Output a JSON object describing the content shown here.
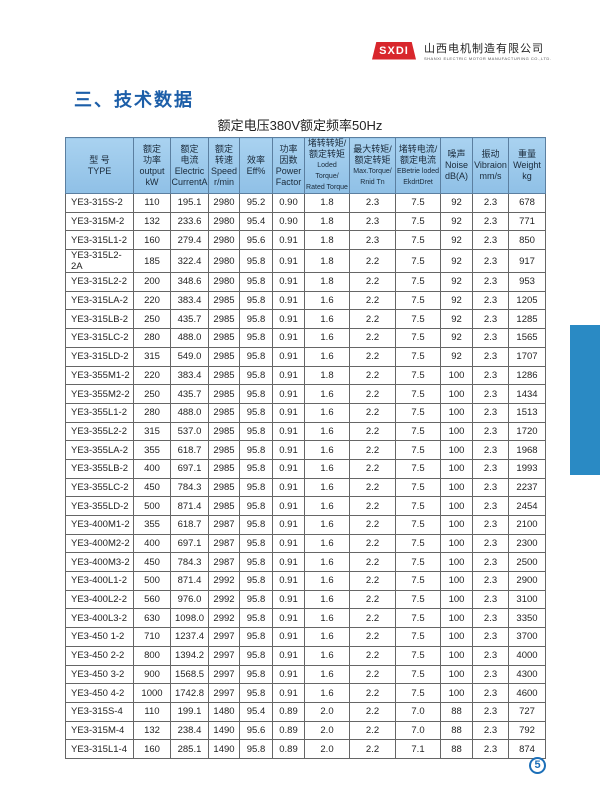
{
  "brand": {
    "logo_text": "SXDI",
    "company_cn": "山西电机制造有限公司",
    "company_en": "SHANXI ELECTRIC MOTOR MANUFACTURING CO.,LTD."
  },
  "section_title": "三、技术数据",
  "subtitle": "额定电压380V额定频率50Hz",
  "headers": [
    [
      "型 号",
      "TYPE"
    ],
    [
      "额定",
      "功率",
      "output",
      "kW"
    ],
    [
      "额定",
      "电流",
      "Electric",
      "CurrentA"
    ],
    [
      "额定",
      "转速",
      "Speed",
      "r/min"
    ],
    [
      "效率",
      "Eff%"
    ],
    [
      "功率",
      "因数",
      "Power",
      "Factor"
    ],
    [
      "堵转转矩/",
      "额定转矩",
      "Loded Torque/",
      "Rated Torque"
    ],
    [
      "最大转矩/",
      "额定转矩",
      "Max.Torque/",
      "Rnid Tn"
    ],
    [
      "堵转电流/",
      "额定电流",
      "EBetrie loded",
      "EkdrtDret"
    ],
    [
      "噪声",
      "Noise",
      "dB(A)"
    ],
    [
      "振动",
      "Vibraion",
      "mm/s"
    ],
    [
      "重量",
      "Weight",
      "kg"
    ]
  ],
  "rows": [
    [
      "YE3-315S-2",
      "110",
      "195.1",
      "2980",
      "95.2",
      "0.90",
      "1.8",
      "2.3",
      "7.5",
      "92",
      "2.3",
      "678"
    ],
    [
      "YE3-315M-2",
      "132",
      "233.6",
      "2980",
      "95.4",
      "0.90",
      "1.8",
      "2.3",
      "7.5",
      "92",
      "2.3",
      "771"
    ],
    [
      "YE3-315L1-2",
      "160",
      "279.4",
      "2980",
      "95.6",
      "0.91",
      "1.8",
      "2.3",
      "7.5",
      "92",
      "2.3",
      "850"
    ],
    [
      "YE3-315L2-2A",
      "185",
      "322.4",
      "2980",
      "95.8",
      "0.91",
      "1.8",
      "2.2",
      "7.5",
      "92",
      "2.3",
      "917"
    ],
    [
      "YE3-315L2-2",
      "200",
      "348.6",
      "2980",
      "95.8",
      "0.91",
      "1.8",
      "2.2",
      "7.5",
      "92",
      "2.3",
      "953"
    ],
    [
      "YE3-315LA-2",
      "220",
      "383.4",
      "2985",
      "95.8",
      "0.91",
      "1.6",
      "2.2",
      "7.5",
      "92",
      "2.3",
      "1205"
    ],
    [
      "YE3-315LB-2",
      "250",
      "435.7",
      "2985",
      "95.8",
      "0.91",
      "1.6",
      "2.2",
      "7.5",
      "92",
      "2.3",
      "1285"
    ],
    [
      "YE3-315LC-2",
      "280",
      "488.0",
      "2985",
      "95.8",
      "0.91",
      "1.6",
      "2.2",
      "7.5",
      "92",
      "2.3",
      "1565"
    ],
    [
      "YE3-315LD-2",
      "315",
      "549.0",
      "2985",
      "95.8",
      "0.91",
      "1.6",
      "2.2",
      "7.5",
      "92",
      "2.3",
      "1707"
    ],
    [
      "YE3-355M1-2",
      "220",
      "383.4",
      "2985",
      "95.8",
      "0.91",
      "1.8",
      "2.2",
      "7.5",
      "100",
      "2.3",
      "1286"
    ],
    [
      "YE3-355M2-2",
      "250",
      "435.7",
      "2985",
      "95.8",
      "0.91",
      "1.6",
      "2.2",
      "7.5",
      "100",
      "2.3",
      "1434"
    ],
    [
      "YE3-355L1-2",
      "280",
      "488.0",
      "2985",
      "95.8",
      "0.91",
      "1.6",
      "2.2",
      "7.5",
      "100",
      "2.3",
      "1513"
    ],
    [
      "YE3-355L2-2",
      "315",
      "537.0",
      "2985",
      "95.8",
      "0.91",
      "1.6",
      "2.2",
      "7.5",
      "100",
      "2.3",
      "1720"
    ],
    [
      "YE3-355LA-2",
      "355",
      "618.7",
      "2985",
      "95.8",
      "0.91",
      "1.6",
      "2.2",
      "7.5",
      "100",
      "2.3",
      "1968"
    ],
    [
      "YE3-355LB-2",
      "400",
      "697.1",
      "2985",
      "95.8",
      "0.91",
      "1.6",
      "2.2",
      "7.5",
      "100",
      "2.3",
      "1993"
    ],
    [
      "YE3-355LC-2",
      "450",
      "784.3",
      "2985",
      "95.8",
      "0.91",
      "1.6",
      "2.2",
      "7.5",
      "100",
      "2.3",
      "2237"
    ],
    [
      "YE3-355LD-2",
      "500",
      "871.4",
      "2985",
      "95.8",
      "0.91",
      "1.6",
      "2.2",
      "7.5",
      "100",
      "2.3",
      "2454"
    ],
    [
      "YE3-400M1-2",
      "355",
      "618.7",
      "2987",
      "95.8",
      "0.91",
      "1.6",
      "2.2",
      "7.5",
      "100",
      "2.3",
      "2100"
    ],
    [
      "YE3-400M2-2",
      "400",
      "697.1",
      "2987",
      "95.8",
      "0.91",
      "1.6",
      "2.2",
      "7.5",
      "100",
      "2.3",
      "2300"
    ],
    [
      "YE3-400M3-2",
      "450",
      "784.3",
      "2987",
      "95.8",
      "0.91",
      "1.6",
      "2.2",
      "7.5",
      "100",
      "2.3",
      "2500"
    ],
    [
      "YE3-400L1-2",
      "500",
      "871.4",
      "2992",
      "95.8",
      "0.91",
      "1.6",
      "2.2",
      "7.5",
      "100",
      "2.3",
      "2900"
    ],
    [
      "YE3-400L2-2",
      "560",
      "976.0",
      "2992",
      "95.8",
      "0.91",
      "1.6",
      "2.2",
      "7.5",
      "100",
      "2.3",
      "3100"
    ],
    [
      "YE3-400L3-2",
      "630",
      "1098.0",
      "2992",
      "95.8",
      "0.91",
      "1.6",
      "2.2",
      "7.5",
      "100",
      "2.3",
      "3350"
    ],
    [
      "YE3-450 1-2",
      "710",
      "1237.4",
      "2997",
      "95.8",
      "0.91",
      "1.6",
      "2.2",
      "7.5",
      "100",
      "2.3",
      "3700"
    ],
    [
      "YE3-450 2-2",
      "800",
      "1394.2",
      "2997",
      "95.8",
      "0.91",
      "1.6",
      "2.2",
      "7.5",
      "100",
      "2.3",
      "4000"
    ],
    [
      "YE3-450 3-2",
      "900",
      "1568.5",
      "2997",
      "95.8",
      "0.91",
      "1.6",
      "2.2",
      "7.5",
      "100",
      "2.3",
      "4300"
    ],
    [
      "YE3-450 4-2",
      "1000",
      "1742.8",
      "2997",
      "95.8",
      "0.91",
      "1.6",
      "2.2",
      "7.5",
      "100",
      "2.3",
      "4600"
    ],
    [
      "YE3-315S-4",
      "110",
      "199.1",
      "1480",
      "95.4",
      "0.89",
      "2.0",
      "2.2",
      "7.0",
      "88",
      "2.3",
      "727"
    ],
    [
      "YE3-315M-4",
      "132",
      "238.4",
      "1490",
      "95.6",
      "0.89",
      "2.0",
      "2.2",
      "7.0",
      "88",
      "2.3",
      "792"
    ],
    [
      "YE3-315L1-4",
      "160",
      "285.1",
      "1490",
      "95.8",
      "0.89",
      "2.0",
      "2.2",
      "7.1",
      "88",
      "2.3",
      "874"
    ]
  ],
  "page_number": "5",
  "colors": {
    "title": "#1c5ea8",
    "header_bg": "#9cc8ec",
    "side_tab": "#2a8ac4",
    "logo": "#d8262c"
  }
}
